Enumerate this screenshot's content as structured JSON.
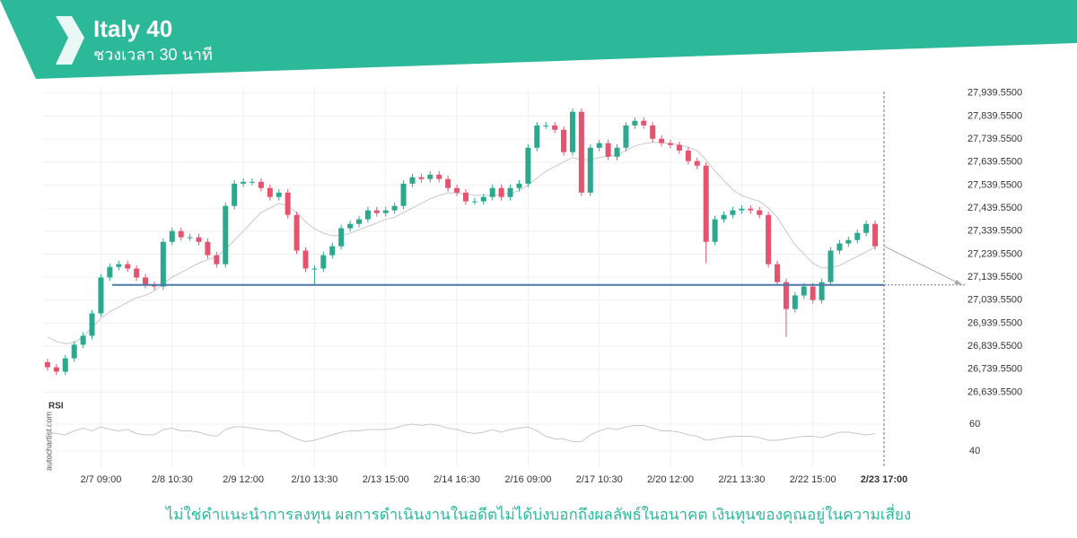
{
  "chart_data": {
    "type": "candlestick",
    "title": "Italy 40",
    "subtitle": "ชวงเวลา 30 นาที",
    "open": [
      26770,
      26748,
      26729,
      26787,
      26846,
      26885,
      26982,
      27138,
      27184,
      27196,
      27177,
      27138,
      27106,
      27099,
      27293,
      27340,
      27313,
      27313,
      27293,
      27235,
      27196,
      27449,
      27546,
      27554,
      27554,
      27527,
      27488,
      27507,
      27410,
      27255,
      27177,
      27177,
      27235,
      27274,
      27352,
      27371,
      27391,
      27430,
      27418,
      27430,
      27449,
      27546,
      27574,
      27566,
      27585,
      27566,
      27527,
      27507,
      27469,
      27469,
      27488,
      27527,
      27488,
      27527,
      27546,
      27702,
      27799,
      27799,
      27780,
      27683,
      27858,
      27507,
      27702,
      27722,
      27663,
      27702,
      27799,
      27819,
      27799,
      27741,
      27722,
      27714,
      27690,
      27644,
      27624,
      27293,
      27391,
      27410,
      27430,
      27437,
      27430,
      27410,
      27196,
      27118,
      27001,
      27060,
      27099,
      27040,
      27118,
      27255,
      27286,
      27301,
      27332,
      27371
    ],
    "high": [
      26785,
      26763,
      26802,
      26861,
      26900,
      26997,
      27153,
      27199,
      27211,
      27211,
      27192,
      27153,
      27121,
      27308,
      27355,
      27355,
      27328,
      27328,
      27308,
      27250,
      27464,
      27561,
      27569,
      27569,
      27569,
      27542,
      27522,
      27522,
      27425,
      27270,
      27192,
      27250,
      27289,
      27367,
      27386,
      27406,
      27445,
      27445,
      27445,
      27464,
      27561,
      27589,
      27589,
      27600,
      27600,
      27581,
      27542,
      27522,
      27484,
      27503,
      27542,
      27542,
      27542,
      27561,
      27717,
      27814,
      27814,
      27814,
      27795,
      27873,
      27873,
      27717,
      27737,
      27737,
      27717,
      27814,
      27834,
      27834,
      27814,
      27756,
      27737,
      27729,
      27705,
      27659,
      27639,
      27406,
      27425,
      27445,
      27452,
      27452,
      27445,
      27425,
      27211,
      27133,
      27075,
      27114,
      27114,
      27133,
      27270,
      27301,
      27316,
      27347,
      27386,
      27386
    ],
    "low": [
      26733,
      26714,
      26714,
      26772,
      26831,
      26870,
      26967,
      27123,
      27169,
      27162,
      27123,
      27091,
      27084,
      27084,
      27278,
      27298,
      27298,
      27278,
      27220,
      27181,
      27181,
      27434,
      27531,
      27539,
      27512,
      27473,
      27473,
      27395,
      27240,
      27162,
      27110,
      27162,
      27220,
      27259,
      27337,
      27356,
      27376,
      27403,
      27403,
      27415,
      27434,
      27531,
      27551,
      27551,
      27551,
      27512,
      27492,
      27454,
      27454,
      27454,
      27473,
      27473,
      27473,
      27512,
      27531,
      27687,
      27784,
      27765,
      27668,
      27668,
      27492,
      27492,
      27687,
      27648,
      27648,
      27687,
      27784,
      27784,
      27726,
      27707,
      27699,
      27675,
      27629,
      27609,
      27200,
      27278,
      27376,
      27395,
      27415,
      27415,
      27395,
      27181,
      27103,
      26880,
      26986,
      27045,
      27025,
      27025,
      27103,
      27240,
      27271,
      27286,
      27317,
      27259
    ],
    "close": [
      26748,
      26729,
      26787,
      26846,
      26885,
      26982,
      27138,
      27184,
      27196,
      27177,
      27138,
      27106,
      27099,
      27293,
      27340,
      27313,
      27313,
      27293,
      27235,
      27196,
      27449,
      27546,
      27554,
      27554,
      27527,
      27488,
      27507,
      27410,
      27255,
      27177,
      27177,
      27235,
      27274,
      27352,
      27371,
      27391,
      27430,
      27418,
      27430,
      27449,
      27546,
      27574,
      27566,
      27585,
      27566,
      27527,
      27507,
      27469,
      27469,
      27488,
      27527,
      27488,
      27527,
      27546,
      27702,
      27799,
      27799,
      27780,
      27683,
      27858,
      27507,
      27702,
      27722,
      27663,
      27702,
      27799,
      27819,
      27799,
      27741,
      27722,
      27714,
      27690,
      27644,
      27624,
      27293,
      27391,
      27410,
      27430,
      27437,
      27430,
      27410,
      27196,
      27118,
      27001,
      27060,
      27099,
      27040,
      27118,
      27255,
      27286,
      27301,
      27332,
      27371,
      27274
    ],
    "ma": [
      26880,
      26860,
      26850,
      26855,
      26880,
      26920,
      26960,
      26990,
      27010,
      27030,
      27050,
      27060,
      27080,
      27110,
      27140,
      27160,
      27180,
      27200,
      27215,
      27230,
      27260,
      27300,
      27340,
      27380,
      27420,
      27440,
      27460,
      27450,
      27420,
      27380,
      27350,
      27330,
      27320,
      27320,
      27330,
      27345,
      27360,
      27375,
      27390,
      27400,
      27420,
      27440,
      27460,
      27480,
      27495,
      27505,
      27505,
      27500,
      27495,
      27495,
      27495,
      27500,
      27505,
      27515,
      27540,
      27570,
      27600,
      27620,
      27640,
      27660,
      27650,
      27650,
      27660,
      27665,
      27670,
      27690,
      27710,
      27720,
      27725,
      27725,
      27720,
      27715,
      27705,
      27690,
      27650,
      27600,
      27560,
      27520,
      27495,
      27480,
      27470,
      27440,
      27400,
      27340,
      27280,
      27240,
      27200,
      27180,
      27180,
      27190,
      27210,
      27230,
      27250,
      27270
    ],
    "support": 27106,
    "up_color": "#2ba88e",
    "down_color": "#e5546f",
    "ma_color": "#c8c8c8",
    "support_color": "#4a78a8",
    "ylim": [
      26610,
      27970
    ],
    "yticks": [
      {
        "value": 27939.55,
        "label": "27,939.5500"
      },
      {
        "value": 27839.55,
        "label": "27,839.5500"
      },
      {
        "value": 27739.55,
        "label": "27,739.5500"
      },
      {
        "value": 27639.55,
        "label": "27,639.5500"
      },
      {
        "value": 27539.55,
        "label": "27,539.5500"
      },
      {
        "value": 27439.55,
        "label": "27,439.5500"
      },
      {
        "value": 27339.55,
        "label": "27,339.5500"
      },
      {
        "value": 27239.55,
        "label": "27,239.5500"
      },
      {
        "value": 27139.55,
        "label": "27,139.5500"
      },
      {
        "value": 27039.55,
        "label": "27,039.5500"
      },
      {
        "value": 26939.55,
        "label": "26,939.5500"
      },
      {
        "value": 26839.55,
        "label": "26,839.5500"
      },
      {
        "value": 26739.55,
        "label": "26,739.5500"
      },
      {
        "value": 26639.55,
        "label": "26,639.5500"
      }
    ],
    "xlim": [
      0,
      94
    ],
    "xticks": [
      {
        "value": 6,
        "label": "2/7 09:00"
      },
      {
        "value": 14,
        "label": "2/8 10:30"
      },
      {
        "value": 22,
        "label": "2/9 12:00"
      },
      {
        "value": 30,
        "label": "2/10 13:30"
      },
      {
        "value": 38,
        "label": "2/13 15:00"
      },
      {
        "value": 46,
        "label": "2/14 16:30"
      },
      {
        "value": 54,
        "label": "2/16 09:00"
      },
      {
        "value": 62,
        "label": "2/17 10:30"
      },
      {
        "value": 70,
        "label": "2/20 12:00"
      },
      {
        "value": 78,
        "label": "2/21 13:30"
      },
      {
        "value": 86,
        "label": "2/22 15:00"
      },
      {
        "value": 94,
        "label": "2/23 17:00"
      }
    ],
    "grid": true,
    "rsi": {
      "label": "RSI",
      "color": "#c8c8c8",
      "ylim": [
        28,
        76
      ],
      "yticks": [
        60,
        40
      ],
      "values": [
        54,
        53,
        52,
        55,
        57,
        55,
        58,
        56,
        55,
        56,
        53,
        52,
        52,
        56,
        57,
        55,
        55,
        54,
        52,
        51,
        56,
        58,
        58,
        57,
        56,
        55,
        55,
        52,
        49,
        47,
        48,
        50,
        52,
        54,
        55,
        55,
        56,
        56,
        56,
        57,
        59,
        60,
        59,
        60,
        59,
        57,
        56,
        54,
        53,
        54,
        56,
        54,
        56,
        57,
        58,
        55,
        51,
        49,
        49,
        47,
        47,
        52,
        55,
        57,
        56,
        58,
        59,
        59,
        57,
        55,
        55,
        54,
        52,
        51,
        48,
        49,
        50,
        51,
        51,
        51,
        50,
        48,
        48,
        49,
        50,
        51,
        51,
        50,
        52,
        54,
        54,
        53,
        52,
        53
      ]
    }
  },
  "disclaimer": "ไม่ใช่คำแนะนำการลงทุน ผลการดำเนินงานในอดีตไม่ได้บ่งบอกถึงผลลัพธ์ในอนาคต เงินทุนของคุณอยู่ในความเสี่ยง",
  "watermark": "autochartist.com"
}
